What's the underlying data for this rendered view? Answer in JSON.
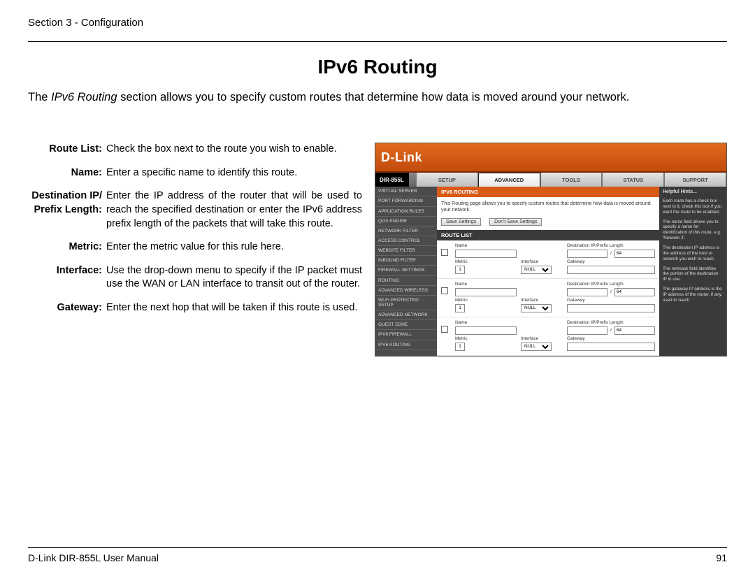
{
  "header": {
    "section": "Section 3 - Configuration"
  },
  "title": "IPv6 Routing",
  "intro_prefix": "The ",
  "intro_ital": "IPv6 Routing",
  "intro_rest": " section allows you to specify custom routes that determine how data is moved around your network.",
  "defs": [
    {
      "term": "Route List:",
      "desc": "Check the box next to the route you wish to enable."
    },
    {
      "term": "Name:",
      "desc": "Enter a specific name to identify this route."
    },
    {
      "term": "Destination IP/ Prefix Length:",
      "desc": "Enter the IP address of the router that will be used to reach the specified destination or enter the IPv6 address prefix length of the packets that will take this route."
    },
    {
      "term": "Metric:",
      "desc": "Enter the metric value for this rule here."
    },
    {
      "term": "Interface:",
      "desc": "Use the drop-down menu to specify if the IP packet must use the WAN or LAN interface to transit out of the router."
    },
    {
      "term": "Gateway:",
      "desc": "Enter the next hop that will be taken if this route is used."
    }
  ],
  "shot": {
    "brand": "D-Link",
    "model": "DIR-855L",
    "tabs": [
      "SETUP",
      "ADVANCED",
      "TOOLS",
      "STATUS",
      "SUPPORT"
    ],
    "active_tab": 1,
    "sidebar": [
      "VIRTUAL SERVER",
      "PORT FORWARDING",
      "APPLICATION RULES",
      "QOS ENGINE",
      "NETWORK FILTER",
      "ACCESS CONTROL",
      "WEBSITE FILTER",
      "INBOUND FILTER",
      "FIREWALL SETTINGS",
      "ROUTING",
      "ADVANCED WIRELESS",
      "WI-FI PROTECTED SETUP",
      "ADVANCED NETWORK",
      "GUEST ZONE",
      "IPV6 FIREWALL",
      "IPV6 ROUTING"
    ],
    "sec1_title": "IPV6 ROUTING",
    "sec1_text": "This Routing page allows you to specify custom routes that determine how data is moved around your network.",
    "btn_save": "Save Settings",
    "btn_dont": "Don't Save Settings",
    "sec2_title": "ROUTE LIST",
    "labels": {
      "name": "Name",
      "dest": "Destination IP/Prefix Length",
      "metric": "Metric",
      "iface": "Interface",
      "gateway": "Gateway"
    },
    "metric_default": "1",
    "iface_default": "NULL",
    "prefix_default": "64",
    "hints_title": "Helpful Hints...",
    "hints": [
      "Each route has a check box next to it, check this box if you want the route to be enabled.",
      "The name field allows you to specify a name for identification of this route, e.g. 'Network 2'.",
      "The destination IP address is the address of the host or network you wish to reach.",
      "The netmask field identifies the portion of the destination IP in use.",
      "The gateway IP address is the IP address of the router, if any, used to reach"
    ]
  },
  "footer": {
    "left": "D-Link DIR-855L User Manual",
    "page": "91"
  }
}
